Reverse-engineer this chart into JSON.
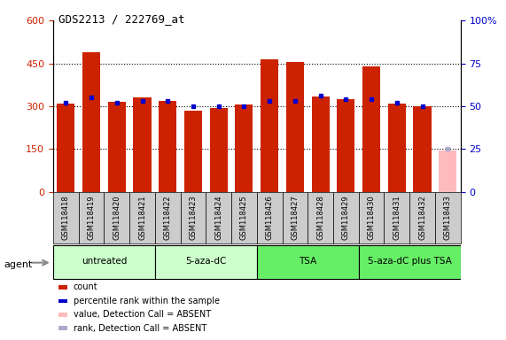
{
  "title": "GDS2213 / 222769_at",
  "samples": [
    "GSM118418",
    "GSM118419",
    "GSM118420",
    "GSM118421",
    "GSM118422",
    "GSM118423",
    "GSM118424",
    "GSM118425",
    "GSM118426",
    "GSM118427",
    "GSM118428",
    "GSM118429",
    "GSM118430",
    "GSM118431",
    "GSM118432",
    "GSM118433"
  ],
  "counts": [
    310,
    490,
    315,
    330,
    320,
    285,
    295,
    305,
    465,
    455,
    335,
    325,
    440,
    310,
    300,
    145
  ],
  "ranks": [
    52,
    55,
    52,
    53,
    53,
    50,
    50,
    50,
    53,
    53,
    56,
    54,
    54,
    52,
    50,
    25
  ],
  "absent": [
    false,
    false,
    false,
    false,
    false,
    false,
    false,
    false,
    false,
    false,
    false,
    false,
    false,
    false,
    false,
    true
  ],
  "groups": [
    {
      "label": "untreated",
      "start": 0,
      "end": 3
    },
    {
      "label": "5-aza-dC",
      "start": 4,
      "end": 7
    },
    {
      "label": "TSA",
      "start": 8,
      "end": 11
    },
    {
      "label": "5-aza-dC plus TSA",
      "start": 12,
      "end": 15
    }
  ],
  "ylim_left": [
    0,
    600
  ],
  "ylim_right": [
    0,
    100
  ],
  "yticks_left": [
    0,
    150,
    300,
    450,
    600
  ],
  "yticks_right": [
    0,
    25,
    50,
    75,
    100
  ],
  "ytick_labels_right": [
    "0",
    "25",
    "50",
    "75",
    "100%"
  ],
  "bar_color_normal": "#CC2200",
  "bar_color_absent": "#FFBBBB",
  "rank_color_normal": "#0000CC",
  "rank_color_absent": "#AAAACC",
  "group_color_light": "#CCFFCC",
  "group_color_dark": "#66EE66",
  "xlabel_box_color": "#CCCCCC",
  "agent_label": "agent",
  "legend_items": [
    {
      "label": "count",
      "color": "#CC2200"
    },
    {
      "label": "percentile rank within the sample",
      "color": "#0000CC"
    },
    {
      "label": "value, Detection Call = ABSENT",
      "color": "#FFBBBB"
    },
    {
      "label": "rank, Detection Call = ABSENT",
      "color": "#AAAACC"
    }
  ]
}
